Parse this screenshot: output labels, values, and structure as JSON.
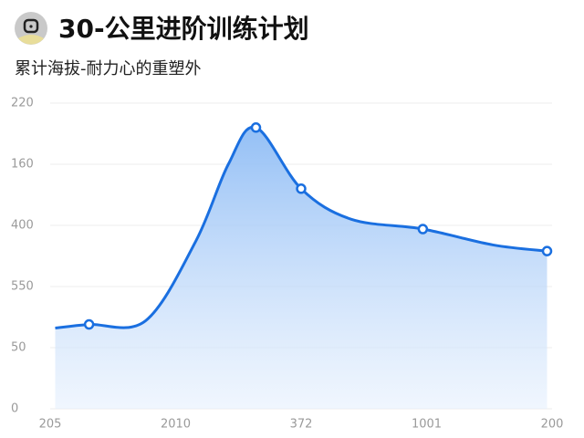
{
  "chart_data": {
    "type": "area",
    "title": "30-公里进阶训练计划",
    "subtitle": "累计海拔-耐力心的重塑外",
    "x": [
      0.04,
      0.31,
      0.76,
      1.16,
      1.42,
      1.64,
      2.0,
      2.4,
      2.97,
      3.53,
      3.96
    ],
    "series": [
      {
        "color": "#1a6fe0",
        "values": [
          66,
          69,
          72,
          137,
          200,
          230,
          180,
          155,
          147,
          134,
          129
        ]
      }
    ],
    "marker_indices": [
      1,
      5,
      6,
      8,
      10
    ],
    "xlim": [
      0,
      4
    ],
    "xticks": [
      {
        "value": 0,
        "label": "205"
      },
      {
        "value": 1,
        "label": "2010"
      },
      {
        "value": 2,
        "label": "372"
      },
      {
        "value": 3,
        "label": "1001"
      },
      {
        "value": 4,
        "label": "200"
      }
    ],
    "ylim": [
      0,
      250
    ],
    "yticks": [
      0,
      50,
      {
        "value": 100,
        "label": "550"
      },
      {
        "value": 150,
        "label": "400"
      },
      {
        "value": 200,
        "label": "160"
      },
      {
        "value": 250,
        "label": "220"
      }
    ],
    "grid": true
  }
}
